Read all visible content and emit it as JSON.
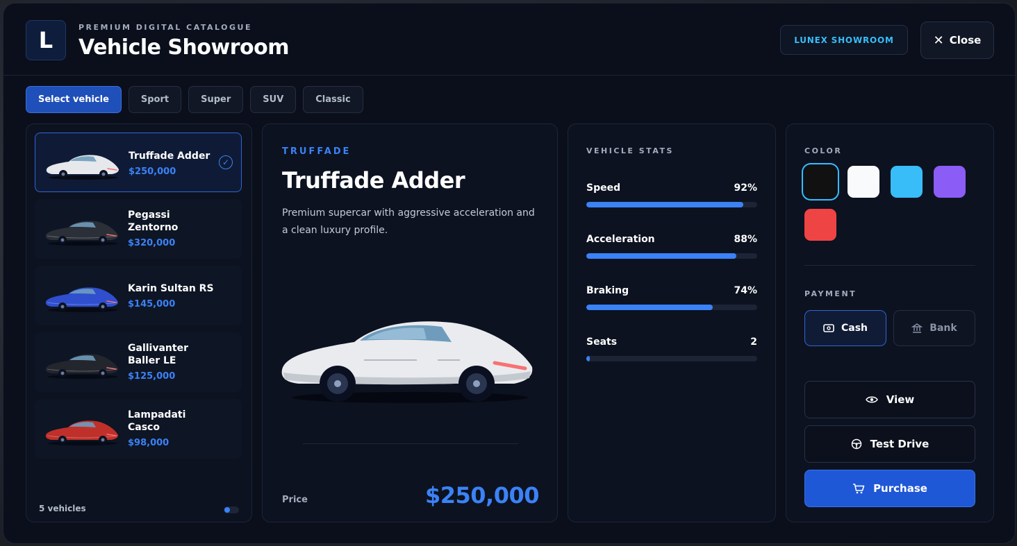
{
  "header": {
    "logo_letter": "L",
    "subtitle": "PREMIUM DIGITAL CATALOGUE",
    "title": "Vehicle Showroom",
    "brand_badge": "LUNEX SHOWROOM",
    "close_label": "Close"
  },
  "tabs": [
    {
      "label": "Select vehicle",
      "active": true
    },
    {
      "label": "Sport"
    },
    {
      "label": "Super"
    },
    {
      "label": "SUV"
    },
    {
      "label": "Classic"
    }
  ],
  "vehicles": [
    {
      "name": "Truffade Adder",
      "price": "$250,000",
      "color": "#e6e8ec",
      "selected": true
    },
    {
      "name": "Pegassi Zentorno",
      "price": "$320,000",
      "color": "#2b2f38"
    },
    {
      "name": "Karin Sultan RS",
      "price": "$145,000",
      "color": "#2f4fcf"
    },
    {
      "name": "Gallivanter Baller LE",
      "price": "$125,000",
      "color": "#23262d"
    },
    {
      "name": "Lampadati Casco",
      "price": "$98,000",
      "color": "#c0302a"
    }
  ],
  "list_footer": {
    "count": "5 vehicles"
  },
  "detail": {
    "brand": "TRUFFADE",
    "model": "Truffade Adder",
    "description": "Premium supercar with aggressive acceleration and a clean luxury profile.",
    "price_label": "Price",
    "price": "$250,000"
  },
  "stats": {
    "title": "VEHICLE STATS",
    "items": [
      {
        "label": "Speed",
        "value": "92%",
        "level": 0.92
      },
      {
        "label": "Acceleration",
        "value": "88%",
        "level": 0.88
      },
      {
        "label": "Braking",
        "value": "74%",
        "level": 0.74
      },
      {
        "label": "Seats",
        "value": "2",
        "level": 0.02
      }
    ]
  },
  "options": {
    "color_title": "COLOR",
    "colors": [
      {
        "hex": "#111111",
        "selected": true
      },
      {
        "hex": "#f8fafc"
      },
      {
        "hex": "#38bdf8"
      },
      {
        "hex": "#8b5cf6"
      },
      {
        "hex": "#ef4444"
      }
    ],
    "payment_title": "PAYMENT",
    "payment": [
      {
        "label": "Cash",
        "icon": "cash-icon",
        "active": true
      },
      {
        "label": "Bank",
        "icon": "bank-icon"
      }
    ],
    "actions": {
      "view": "View",
      "test_drive": "Test Drive",
      "purchase": "Purchase"
    }
  },
  "colors": {
    "accent": "#3b82f6",
    "primary_button": "#1f58d6",
    "badge_text": "#38bdf8"
  }
}
